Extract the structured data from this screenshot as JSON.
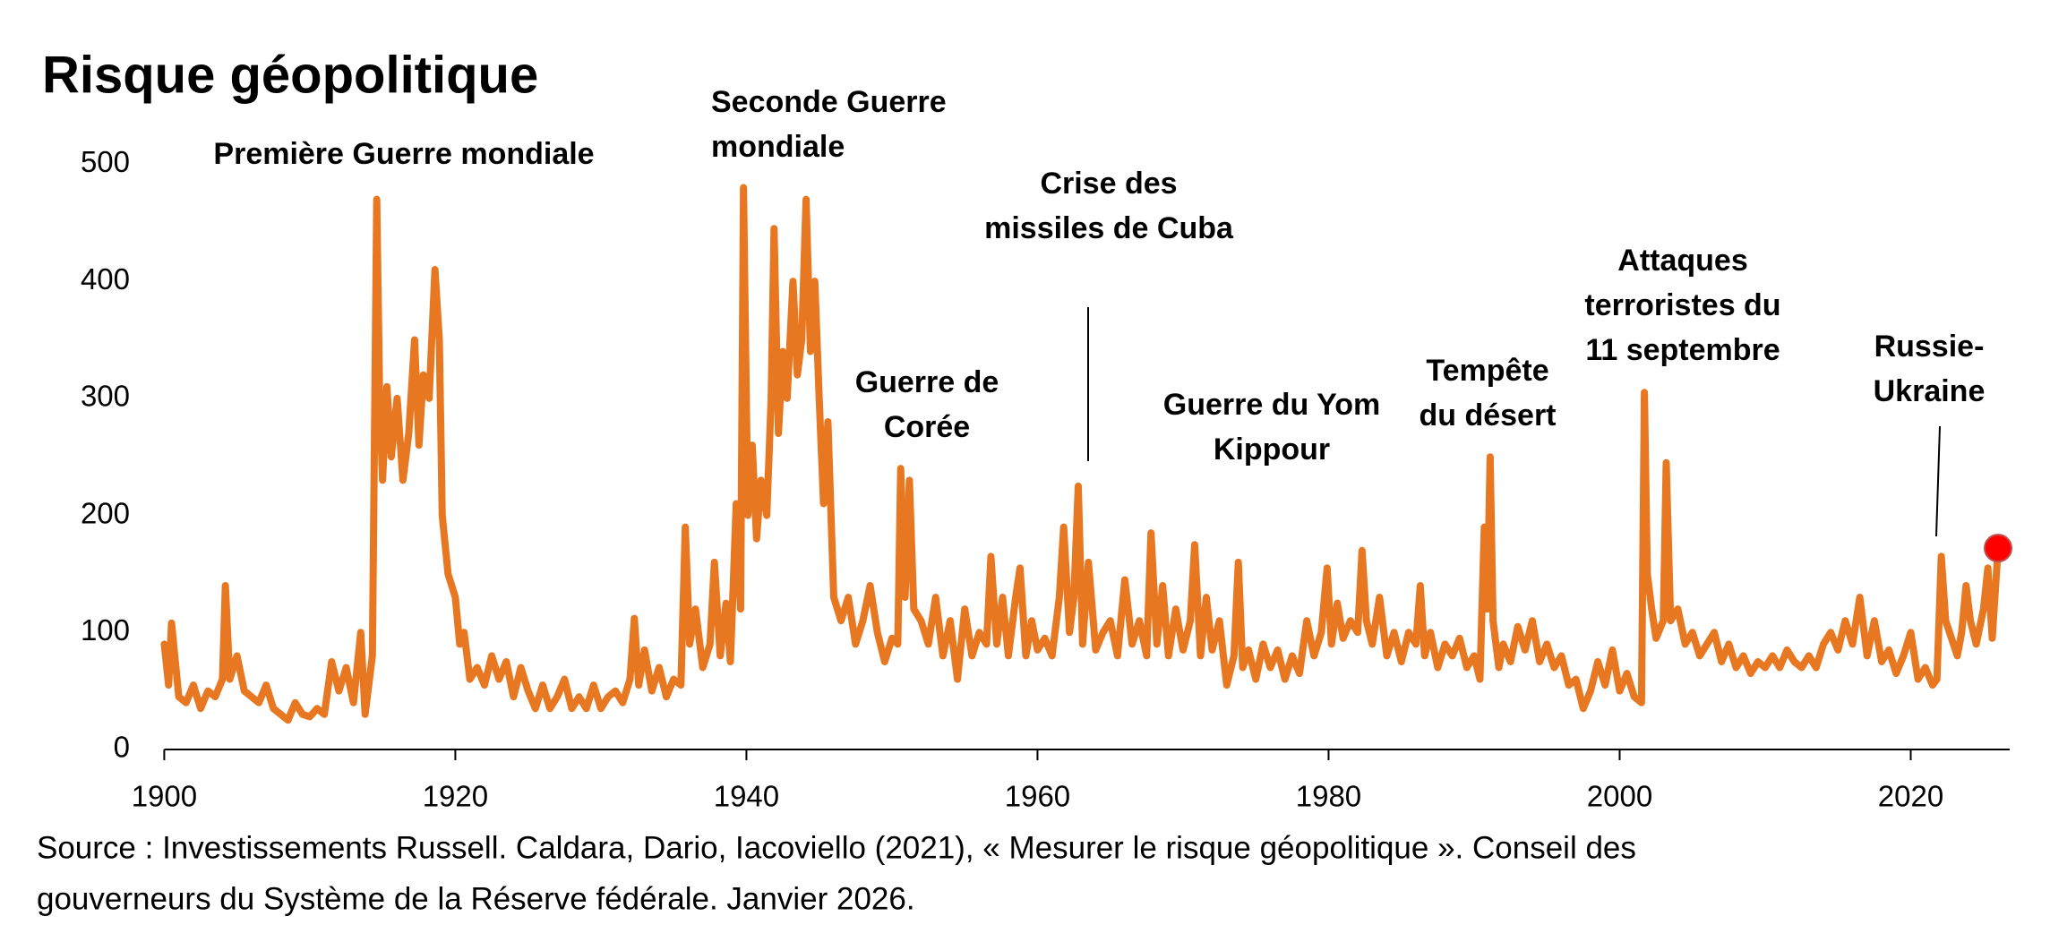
{
  "chart_data": {
    "type": "line",
    "title": "Risque géopolitique",
    "annotations": [
      {
        "lines": [
          "Première Guerre mondiale"
        ]
      },
      {
        "lines": [
          "Seconde Guerre",
          "mondiale"
        ]
      },
      {
        "lines": [
          "Guerre de",
          "Corée"
        ]
      },
      {
        "lines": [
          "Crise des",
          "missiles de Cuba"
        ]
      },
      {
        "lines": [
          "Guerre du Yom",
          "Kippour"
        ]
      },
      {
        "lines": [
          "Tempête",
          "du désert"
        ]
      },
      {
        "lines": [
          "Attaques",
          "terroristes du",
          "11 septembre"
        ]
      },
      {
        "lines": [
          "Russie-",
          "Ukraine"
        ]
      }
    ],
    "source": [
      "Source : Investissements Russell. Caldara, Dario, Iacoviello (2021), « Mesurer le risque géopolitique ». Conseil des",
      "gouverneurs du Système de la Réserve fédérale. Janvier 2026."
    ],
    "xlim": [
      1900,
      2026.8
    ],
    "xticks": [
      1900,
      1920,
      1940,
      1960,
      1980,
      2000,
      2020
    ],
    "ylim": [
      0,
      500
    ],
    "yticks": [
      0,
      100,
      200,
      300,
      400,
      500
    ],
    "grid": false,
    "last_point_marker": "#ff0000",
    "x": [
      1900,
      1900.3,
      1900.5,
      1901,
      1901.5,
      1902,
      1902.5,
      1903,
      1903.5,
      1904,
      1904.2,
      1904.5,
      1905,
      1905.5,
      1906,
      1906.5,
      1907,
      1907.5,
      1908,
      1908.5,
      1909,
      1909.5,
      1910,
      1910.5,
      1911,
      1911.5,
      1912,
      1912.5,
      1913,
      1913.5,
      1913.8,
      1914.3,
      1914.6,
      1914.8,
      1915,
      1915.3,
      1915.6,
      1916,
      1916.4,
      1916.8,
      1917.2,
      1917.5,
      1917.8,
      1918.2,
      1918.6,
      1918.9,
      1919.1,
      1919.5,
      1920,
      1920.3,
      1920.6,
      1921,
      1921.5,
      1922,
      1922.5,
      1923,
      1923.5,
      1924,
      1924.5,
      1925,
      1925.5,
      1926,
      1926.5,
      1927,
      1927.5,
      1928,
      1928.5,
      1929,
      1929.5,
      1930,
      1930.5,
      1931,
      1931.5,
      1932,
      1932.3,
      1932.6,
      1933,
      1933.5,
      1934,
      1934.5,
      1935,
      1935.5,
      1935.8,
      1936.1,
      1936.5,
      1937,
      1937.5,
      1937.8,
      1938.2,
      1938.6,
      1938.9,
      1939.3,
      1939.6,
      1939.8,
      1940.1,
      1940.4,
      1940.7,
      1941,
      1941.4,
      1941.7,
      1941.9,
      1942.2,
      1942.5,
      1942.8,
      1943.2,
      1943.5,
      1943.8,
      1944.1,
      1944.4,
      1944.7,
      1945,
      1945.3,
      1945.6,
      1946,
      1946.5,
      1947,
      1947.5,
      1948,
      1948.5,
      1949,
      1949.5,
      1950,
      1950.4,
      1950.6,
      1950.9,
      1951.2,
      1951.5,
      1952,
      1952.5,
      1953,
      1953.5,
      1954,
      1954.5,
      1955,
      1955.5,
      1956,
      1956.5,
      1956.8,
      1957.2,
      1957.6,
      1958,
      1958.5,
      1958.8,
      1959.2,
      1959.6,
      1960,
      1960.5,
      1961,
      1961.5,
      1961.8,
      1962.2,
      1962.5,
      1962.8,
      1963.1,
      1963.5,
      1964,
      1964.5,
      1965,
      1965.5,
      1966,
      1966.5,
      1967,
      1967.5,
      1967.8,
      1968.2,
      1968.6,
      1969,
      1969.5,
      1970,
      1970.5,
      1970.8,
      1971.2,
      1971.6,
      1972,
      1972.5,
      1973,
      1973.5,
      1973.8,
      1974.1,
      1974.5,
      1975,
      1975.5,
      1976,
      1976.5,
      1977,
      1977.5,
      1978,
      1978.5,
      1979,
      1979.5,
      1979.9,
      1980.2,
      1980.6,
      1981,
      1981.5,
      1982,
      1982.3,
      1982.6,
      1983,
      1983.5,
      1984,
      1984.5,
      1985,
      1985.5,
      1986,
      1986.3,
      1986.6,
      1987,
      1987.5,
      1988,
      1988.5,
      1989,
      1989.5,
      1990,
      1990.4,
      1990.7,
      1990.9,
      1991.1,
      1991.3,
      1991.7,
      1992,
      1992.5,
      1993,
      1993.5,
      1994,
      1994.5,
      1995,
      1995.5,
      1996,
      1996.5,
      1997,
      1997.5,
      1998,
      1998.5,
      1999,
      1999.5,
      2000,
      2000.5,
      2001,
      2001.5,
      2001.7,
      2001.9,
      2002.2,
      2002.5,
      2003,
      2003.2,
      2003.5,
      2004,
      2004.5,
      2005,
      2005.5,
      2006,
      2006.5,
      2007,
      2007.5,
      2008,
      2008.5,
      2009,
      2009.5,
      2010,
      2010.5,
      2011,
      2011.5,
      2012,
      2012.5,
      2013,
      2013.5,
      2014,
      2014.5,
      2015,
      2015.5,
      2016,
      2016.5,
      2017,
      2017.5,
      2018,
      2018.5,
      2019,
      2019.5,
      2020,
      2020.5,
      2021,
      2021.5,
      2021.8,
      2022.1,
      2022.4,
      2022.8,
      2023.2,
      2023.5,
      2023.8,
      2024.1,
      2024.5,
      2025,
      2025.3,
      2025.6,
      2026
    ],
    "series": [
      {
        "color": "#e87722",
        "values": [
          90,
          55,
          108,
          45,
          40,
          55,
          35,
          50,
          45,
          60,
          140,
          60,
          80,
          50,
          45,
          40,
          55,
          35,
          30,
          25,
          40,
          30,
          28,
          35,
          30,
          75,
          50,
          70,
          40,
          100,
          30,
          80,
          470,
          300,
          230,
          310,
          250,
          300,
          230,
          270,
          350,
          260,
          320,
          300,
          410,
          350,
          200,
          150,
          130,
          90,
          100,
          60,
          70,
          55,
          80,
          60,
          75,
          45,
          70,
          50,
          35,
          55,
          35,
          45,
          60,
          35,
          45,
          35,
          55,
          35,
          45,
          50,
          40,
          60,
          112,
          55,
          85,
          50,
          70,
          45,
          60,
          55,
          190,
          90,
          120,
          70,
          90,
          160,
          80,
          125,
          75,
          210,
          120,
          480,
          200,
          260,
          180,
          230,
          200,
          300,
          445,
          270,
          340,
          300,
          400,
          320,
          350,
          470,
          340,
          400,
          300,
          210,
          280,
          130,
          110,
          130,
          90,
          110,
          140,
          100,
          75,
          95,
          90,
          240,
          130,
          230,
          120,
          110,
          90,
          130,
          80,
          110,
          60,
          120,
          80,
          100,
          90,
          165,
          90,
          130,
          80,
          130,
          155,
          80,
          110,
          85,
          95,
          80,
          130,
          190,
          100,
          130,
          225,
          90,
          160,
          85,
          100,
          110,
          80,
          145,
          90,
          110,
          80,
          185,
          90,
          140,
          80,
          120,
          85,
          110,
          175,
          80,
          130,
          85,
          110,
          55,
          80,
          160,
          70,
          85,
          60,
          90,
          70,
          85,
          60,
          80,
          65,
          110,
          80,
          100,
          155,
          90,
          125,
          95,
          110,
          100,
          170,
          110,
          90,
          130,
          80,
          100,
          75,
          100,
          90,
          140,
          80,
          100,
          70,
          90,
          80,
          95,
          70,
          80,
          60,
          190,
          120,
          250,
          110,
          70,
          90,
          75,
          105,
          85,
          110,
          75,
          90,
          70,
          80,
          55,
          60,
          35,
          50,
          75,
          55,
          85,
          50,
          65,
          45,
          40,
          305,
          150,
          120,
          95,
          110,
          245,
          110,
          120,
          90,
          100,
          80,
          90,
          100,
          75,
          90,
          70,
          80,
          65,
          75,
          70,
          80,
          70,
          85,
          75,
          70,
          80,
          70,
          90,
          100,
          85,
          110,
          90,
          130,
          80,
          110,
          75,
          85,
          65,
          80,
          100,
          60,
          70,
          55,
          60,
          165,
          110,
          95,
          80,
          100,
          140,
          110,
          90,
          120,
          155,
          95,
          172
        ]
      }
    ]
  }
}
